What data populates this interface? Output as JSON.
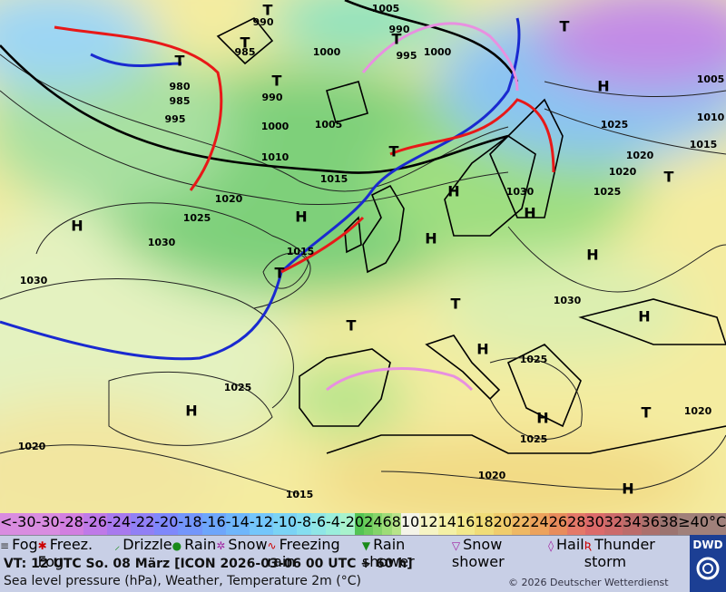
{
  "map": {
    "labels": [
      "990",
      "985",
      "1005",
      "990",
      "995",
      "1000",
      "1000",
      "980",
      "985",
      "995",
      "990",
      "1000",
      "1005",
      "1010",
      "1015",
      "1020",
      "1025",
      "1030",
      "1030",
      "1015",
      "1025",
      "1020",
      "1020",
      "1025",
      "1015",
      "1010",
      "1005",
      "1030",
      "1030",
      "1025",
      "1025",
      "1020",
      "1025",
      "1020",
      "1020",
      "1015"
    ],
    "highs": [
      "H",
      "H",
      "H",
      "H",
      "H",
      "H",
      "H",
      "H",
      "H",
      "H",
      "H",
      "H"
    ],
    "lows": [
      "T",
      "T",
      "T",
      "T",
      "T",
      "T",
      "T",
      "T",
      "T",
      "T",
      "T",
      "T"
    ]
  },
  "temperature_scale": {
    "below_sign": "<",
    "below_value": "-30",
    "steps": [
      -30,
      -28,
      -26,
      -24,
      -22,
      -20,
      -18,
      -16,
      -14,
      -12,
      -10,
      -8,
      -6,
      -4,
      -2,
      0,
      2,
      4,
      6,
      8,
      10,
      12,
      14,
      16,
      18,
      20,
      22,
      24,
      26,
      28,
      30,
      32,
      34,
      36,
      38
    ],
    "colors": [
      "#d98ce0",
      "#d27fe0",
      "#bf7ae8",
      "#a87aee",
      "#9180f5",
      "#7f88fb",
      "#7496fb",
      "#6ea6fb",
      "#6fb6fb",
      "#74c6fb",
      "#7bd3f5",
      "#85def0",
      "#8fe6e6",
      "#9aeedc",
      "#a8f2cc",
      "#54c454",
      "#6ccc5c",
      "#84d46a",
      "#9edc78",
      "#b8e48a",
      "#f4f4e8",
      "#f6f4c4",
      "#f4f0a6",
      "#f2e88c",
      "#f0dc78",
      "#f0cc6c",
      "#eeb864",
      "#eca25c",
      "#e88c5c",
      "#e47868",
      "#dc6a6a",
      "#cc6a6a",
      "#bc6c6a",
      "#ac706c",
      "#9c7470"
    ],
    "above_label": "≥40",
    "unit": "°C",
    "above_color": "#a0807a"
  },
  "weather_legend": [
    "Fog",
    "Freez. Fog",
    "Drizzle",
    "Rain",
    "Snow",
    "Freezing rain",
    "Rain shower",
    "Snow shower",
    "Hail",
    "Thunder storm"
  ],
  "footer": {
    "valid_time": "VT: 12 UTC So.  08 März [ICON 2026-03-06  00 UTC + 60 h]",
    "description": "Sea level pressure (hPa), Weather, Temperature 2m (°C)",
    "copyright": "© 2026 Deutscher Wetterdienst",
    "logo": "DWD"
  }
}
